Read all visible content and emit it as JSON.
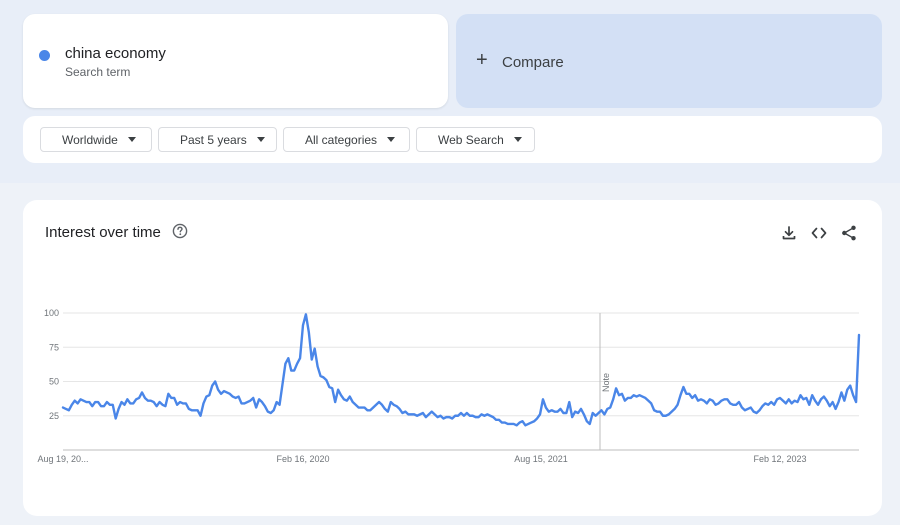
{
  "search_term": {
    "name": "china economy",
    "subtitle": "Search term",
    "color": "#4a86e8"
  },
  "compare": {
    "plus": "+",
    "label": "Compare"
  },
  "filters": [
    {
      "label": "Worldwide"
    },
    {
      "label": "Past 5 years"
    },
    {
      "label": "All categories"
    },
    {
      "label": "Web Search"
    }
  ],
  "panel": {
    "title": "Interest over time",
    "help_icon": "help-circle-icon",
    "actions": [
      "download-icon",
      "embed-code-icon",
      "share-icon"
    ]
  },
  "chart_data": {
    "type": "line",
    "title": "",
    "xlabel": "",
    "ylabel": "",
    "ylim": [
      0,
      100
    ],
    "yticks": [
      "100",
      "75",
      "50",
      "25"
    ],
    "xticks": [
      "Aug 19, 20...",
      "Feb 16, 2020",
      "Aug 15, 2021",
      "Feb 12, 2023"
    ],
    "note_label": "Note",
    "grid": true,
    "series_color": "#4a86e8",
    "series": [
      {
        "name": "china economy",
        "values": [
          31,
          30,
          29,
          33,
          36,
          34,
          37,
          36,
          35,
          35,
          32,
          35,
          35,
          32,
          32,
          35,
          33,
          33,
          23,
          30,
          35,
          33,
          37,
          34,
          34,
          37,
          38,
          42,
          38,
          36,
          36,
          35,
          32,
          35,
          33,
          32,
          41,
          38,
          38,
          33,
          35,
          34,
          34,
          30,
          29,
          29,
          29,
          25,
          34,
          39,
          40,
          47,
          50,
          44,
          41,
          43,
          42,
          41,
          39,
          38,
          39,
          34,
          34,
          35,
          36,
          38,
          31,
          37,
          35,
          32,
          28,
          27,
          29,
          35,
          33,
          48,
          63,
          67,
          58,
          58,
          63,
          67,
          91,
          99,
          86,
          66,
          74,
          61,
          54,
          53,
          51,
          46,
          45,
          35,
          44,
          40,
          37,
          36,
          39,
          35,
          33,
          31,
          31,
          31,
          29,
          29,
          31,
          33,
          35,
          33,
          30,
          28,
          35,
          33,
          32,
          30,
          27,
          28,
          26,
          26,
          26,
          25,
          26,
          27,
          24,
          26,
          28,
          26,
          24,
          25,
          23,
          24,
          24,
          23,
          25,
          25,
          27,
          25,
          27,
          25,
          25,
          24,
          24,
          26,
          25,
          26,
          25,
          24,
          22,
          22,
          20,
          20,
          19,
          19,
          19,
          18,
          20,
          21,
          18,
          19,
          20,
          21,
          23,
          26,
          37,
          31,
          28,
          29,
          28,
          28,
          30,
          27,
          27,
          35,
          24,
          28,
          27,
          30,
          26,
          21,
          19,
          27,
          25,
          27,
          29,
          26,
          30,
          31,
          37,
          45,
          40,
          41,
          36,
          38,
          38,
          40,
          39,
          40,
          39,
          38,
          36,
          34,
          29,
          28,
          28,
          25,
          25,
          26,
          28,
          30,
          33,
          40,
          46,
          41,
          41,
          38,
          40,
          36,
          37,
          36,
          34,
          37,
          36,
          33,
          34,
          36,
          37,
          37,
          34,
          33,
          33,
          35,
          31,
          29,
          30,
          31,
          28,
          27,
          29,
          32,
          34,
          33,
          35,
          33,
          37,
          38,
          36,
          34,
          37,
          34,
          36,
          35,
          40,
          37,
          38,
          33,
          40,
          36,
          33,
          37,
          39,
          36,
          32,
          35,
          30,
          35,
          42,
          36,
          44,
          47,
          40,
          35,
          84
        ]
      }
    ]
  }
}
